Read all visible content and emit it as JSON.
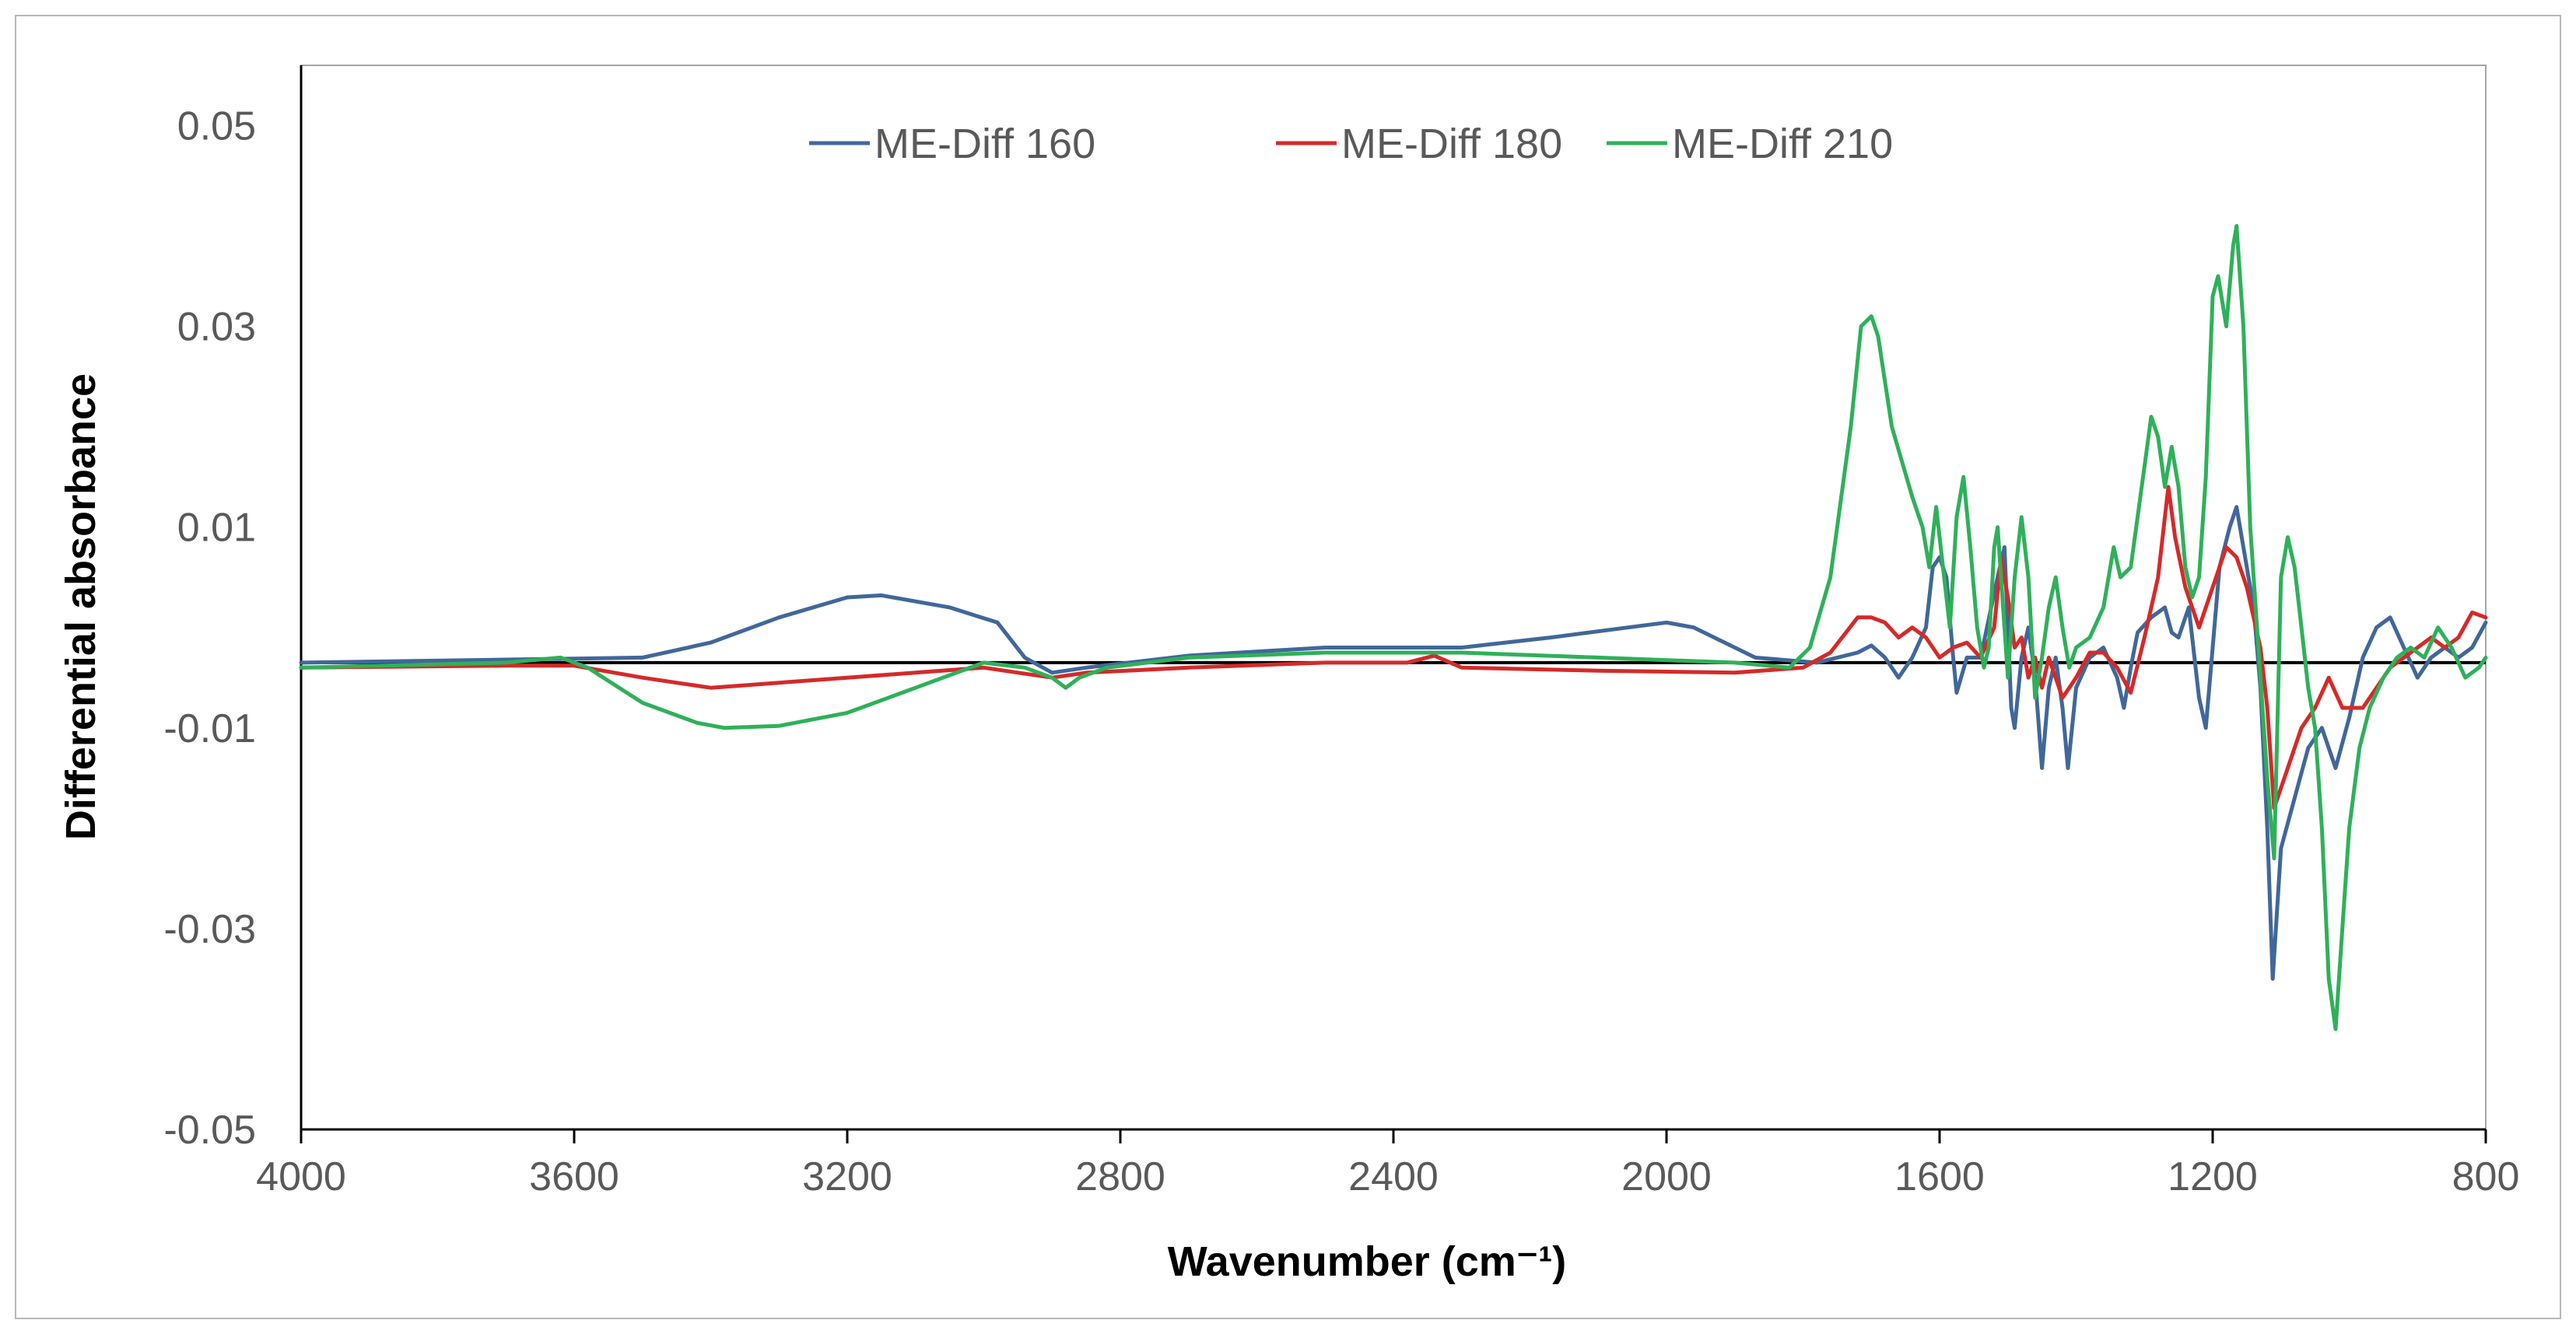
{
  "chart_data": {
    "type": "line",
    "title": "",
    "xlabel": "Wavenumber (cm⁻¹)",
    "ylabel": "Differential absorbance",
    "xlim": [
      4000,
      800
    ],
    "ylim": [
      -0.05,
      0.056
    ],
    "x_reversed": true,
    "x_ticks": [
      4000,
      3600,
      3200,
      2800,
      2400,
      2000,
      1600,
      1200,
      800
    ],
    "y_ticks": [
      -0.05,
      -0.03,
      -0.01,
      0.01,
      0.03,
      0.05
    ],
    "x_tick_labels": [
      "4000",
      "3600",
      "3200",
      "2800",
      "2400",
      "2000",
      "1600",
      "1200",
      "800"
    ],
    "y_tick_labels": [
      "-0.05",
      "-0.03",
      "-0.01",
      "0.01",
      "0.03",
      "0.05"
    ],
    "baseline": -0.0035,
    "grid": false,
    "legend_position": "top-center",
    "series": [
      {
        "name": "ME-Diff 160",
        "color": "#41679a",
        "points": [
          [
            4000,
            -0.0035
          ],
          [
            3700,
            -0.0032
          ],
          [
            3500,
            -0.003
          ],
          [
            3400,
            -0.0015
          ],
          [
            3300,
            0.001
          ],
          [
            3200,
            0.003
          ],
          [
            3150,
            0.0032
          ],
          [
            3050,
            0.002
          ],
          [
            2980,
            0.0005
          ],
          [
            2940,
            -0.003
          ],
          [
            2900,
            -0.0045
          ],
          [
            2850,
            -0.004
          ],
          [
            2700,
            -0.0028
          ],
          [
            2500,
            -0.002
          ],
          [
            2300,
            -0.002
          ],
          [
            2170,
            -0.001
          ],
          [
            2000,
            0.0005
          ],
          [
            1960,
            0.0
          ],
          [
            1870,
            -0.003
          ],
          [
            1780,
            -0.0035
          ],
          [
            1720,
            -0.0025
          ],
          [
            1700,
            -0.0018
          ],
          [
            1680,
            -0.003
          ],
          [
            1660,
            -0.005
          ],
          [
            1640,
            -0.003
          ],
          [
            1620,
            0.0
          ],
          [
            1610,
            0.006
          ],
          [
            1600,
            0.007
          ],
          [
            1590,
            0.005
          ],
          [
            1580,
            -0.003
          ],
          [
            1575,
            -0.0065
          ],
          [
            1560,
            -0.003
          ],
          [
            1540,
            -0.003
          ],
          [
            1515,
            0.005
          ],
          [
            1505,
            0.008
          ],
          [
            1495,
            -0.008
          ],
          [
            1490,
            -0.01
          ],
          [
            1480,
            -0.003
          ],
          [
            1470,
            0.0
          ],
          [
            1460,
            -0.005
          ],
          [
            1450,
            -0.014
          ],
          [
            1440,
            -0.006
          ],
          [
            1430,
            -0.003
          ],
          [
            1420,
            -0.008
          ],
          [
            1412,
            -0.014
          ],
          [
            1400,
            -0.006
          ],
          [
            1380,
            -0.003
          ],
          [
            1360,
            -0.002
          ],
          [
            1340,
            -0.005
          ],
          [
            1330,
            -0.008
          ],
          [
            1320,
            -0.004
          ],
          [
            1310,
            -0.0005
          ],
          [
            1290,
            0.001
          ],
          [
            1270,
            0.002
          ],
          [
            1260,
            -0.0005
          ],
          [
            1250,
            -0.001
          ],
          [
            1240,
            0.001
          ],
          [
            1235,
            0.002
          ],
          [
            1220,
            -0.007
          ],
          [
            1210,
            -0.01
          ],
          [
            1200,
            -0.002
          ],
          [
            1190,
            0.006
          ],
          [
            1175,
            0.01
          ],
          [
            1165,
            0.012
          ],
          [
            1155,
            0.008
          ],
          [
            1140,
            0.002
          ],
          [
            1130,
            -0.006
          ],
          [
            1120,
            -0.02
          ],
          [
            1112,
            -0.035
          ],
          [
            1100,
            -0.022
          ],
          [
            1080,
            -0.017
          ],
          [
            1060,
            -0.012
          ],
          [
            1040,
            -0.01
          ],
          [
            1020,
            -0.014
          ],
          [
            1000,
            -0.009
          ],
          [
            980,
            -0.003
          ],
          [
            960,
            0.0
          ],
          [
            940,
            0.001
          ],
          [
            920,
            -0.002
          ],
          [
            900,
            -0.005
          ],
          [
            880,
            -0.003
          ],
          [
            860,
            -0.002
          ],
          [
            840,
            -0.003
          ],
          [
            820,
            -0.002
          ],
          [
            800,
            0.0005
          ]
        ]
      },
      {
        "name": "ME-Diff 180",
        "color": "#d42a2a",
        "points": [
          [
            4000,
            -0.004
          ],
          [
            3700,
            -0.0038
          ],
          [
            3600,
            -0.0038
          ],
          [
            3500,
            -0.005
          ],
          [
            3400,
            -0.006
          ],
          [
            3300,
            -0.0055
          ],
          [
            3200,
            -0.005
          ],
          [
            3100,
            -0.0045
          ],
          [
            3000,
            -0.004
          ],
          [
            2950,
            -0.0045
          ],
          [
            2900,
            -0.005
          ],
          [
            2850,
            -0.0045
          ],
          [
            2700,
            -0.004
          ],
          [
            2500,
            -0.0035
          ],
          [
            2380,
            -0.0035
          ],
          [
            2340,
            -0.0028
          ],
          [
            2300,
            -0.004
          ],
          [
            2100,
            -0.0043
          ],
          [
            1900,
            -0.0045
          ],
          [
            1800,
            -0.004
          ],
          [
            1760,
            -0.0025
          ],
          [
            1720,
            0.001
          ],
          [
            1700,
            0.001
          ],
          [
            1680,
            0.0005
          ],
          [
            1660,
            -0.001
          ],
          [
            1640,
            0.0
          ],
          [
            1620,
            -0.001
          ],
          [
            1600,
            -0.003
          ],
          [
            1580,
            -0.002
          ],
          [
            1560,
            -0.0015
          ],
          [
            1540,
            -0.003
          ],
          [
            1520,
            0.0
          ],
          [
            1510,
            0.007
          ],
          [
            1500,
            0.003
          ],
          [
            1490,
            -0.002
          ],
          [
            1480,
            -0.001
          ],
          [
            1470,
            -0.005
          ],
          [
            1460,
            -0.003
          ],
          [
            1450,
            -0.006
          ],
          [
            1440,
            -0.003
          ],
          [
            1420,
            -0.007
          ],
          [
            1400,
            -0.005
          ],
          [
            1380,
            -0.0025
          ],
          [
            1360,
            -0.0025
          ],
          [
            1340,
            -0.004
          ],
          [
            1320,
            -0.0065
          ],
          [
            1300,
            -0.001
          ],
          [
            1280,
            0.005
          ],
          [
            1265,
            0.014
          ],
          [
            1255,
            0.009
          ],
          [
            1240,
            0.004
          ],
          [
            1220,
            0.0
          ],
          [
            1200,
            0.004
          ],
          [
            1180,
            0.008
          ],
          [
            1165,
            0.007
          ],
          [
            1150,
            0.004
          ],
          [
            1130,
            -0.002
          ],
          [
            1120,
            -0.008
          ],
          [
            1110,
            -0.018
          ],
          [
            1090,
            -0.014
          ],
          [
            1070,
            -0.01
          ],
          [
            1050,
            -0.008
          ],
          [
            1030,
            -0.005
          ],
          [
            1010,
            -0.008
          ],
          [
            980,
            -0.008
          ],
          [
            960,
            -0.006
          ],
          [
            940,
            -0.004
          ],
          [
            920,
            -0.003
          ],
          [
            900,
            -0.002
          ],
          [
            880,
            -0.001
          ],
          [
            860,
            -0.002
          ],
          [
            840,
            -0.001
          ],
          [
            820,
            0.0015
          ],
          [
            800,
            0.001
          ]
        ]
      },
      {
        "name": "ME-Diff 210",
        "color": "#2fb05a",
        "points": [
          [
            4000,
            -0.004
          ],
          [
            3700,
            -0.0035
          ],
          [
            3620,
            -0.003
          ],
          [
            3580,
            -0.004
          ],
          [
            3500,
            -0.0075
          ],
          [
            3420,
            -0.0095
          ],
          [
            3380,
            -0.01
          ],
          [
            3300,
            -0.0098
          ],
          [
            3200,
            -0.0085
          ],
          [
            3100,
            -0.006
          ],
          [
            3000,
            -0.0035
          ],
          [
            2940,
            -0.004
          ],
          [
            2900,
            -0.005
          ],
          [
            2880,
            -0.006
          ],
          [
            2860,
            -0.005
          ],
          [
            2820,
            -0.004
          ],
          [
            2700,
            -0.003
          ],
          [
            2500,
            -0.0025
          ],
          [
            2300,
            -0.0025
          ],
          [
            2100,
            -0.003
          ],
          [
            1900,
            -0.0035
          ],
          [
            1820,
            -0.004
          ],
          [
            1790,
            -0.002
          ],
          [
            1760,
            0.005
          ],
          [
            1730,
            0.02
          ],
          [
            1715,
            0.03
          ],
          [
            1700,
            0.031
          ],
          [
            1690,
            0.029
          ],
          [
            1670,
            0.02
          ],
          [
            1640,
            0.013
          ],
          [
            1625,
            0.01
          ],
          [
            1615,
            0.006
          ],
          [
            1605,
            0.012
          ],
          [
            1595,
            0.006
          ],
          [
            1585,
            0.0
          ],
          [
            1575,
            0.011
          ],
          [
            1565,
            0.015
          ],
          [
            1555,
            0.008
          ],
          [
            1545,
            0.0
          ],
          [
            1535,
            -0.004
          ],
          [
            1528,
            -0.002
          ],
          [
            1520,
            0.008
          ],
          [
            1515,
            0.01
          ],
          [
            1505,
            0.0
          ],
          [
            1500,
            -0.005
          ],
          [
            1490,
            0.005
          ],
          [
            1480,
            0.011
          ],
          [
            1470,
            0.005
          ],
          [
            1460,
            -0.007
          ],
          [
            1450,
            -0.003
          ],
          [
            1440,
            0.002
          ],
          [
            1430,
            0.005
          ],
          [
            1420,
            0.0
          ],
          [
            1410,
            -0.004
          ],
          [
            1400,
            -0.002
          ],
          [
            1380,
            -0.001
          ],
          [
            1360,
            0.002
          ],
          [
            1345,
            0.008
          ],
          [
            1335,
            0.005
          ],
          [
            1320,
            0.006
          ],
          [
            1300,
            0.016
          ],
          [
            1290,
            0.021
          ],
          [
            1280,
            0.019
          ],
          [
            1270,
            0.014
          ],
          [
            1260,
            0.018
          ],
          [
            1250,
            0.014
          ],
          [
            1240,
            0.006
          ],
          [
            1230,
            0.003
          ],
          [
            1220,
            0.005
          ],
          [
            1210,
            0.015
          ],
          [
            1200,
            0.033
          ],
          [
            1192,
            0.035
          ],
          [
            1180,
            0.03
          ],
          [
            1170,
            0.038
          ],
          [
            1165,
            0.04
          ],
          [
            1155,
            0.03
          ],
          [
            1145,
            0.01
          ],
          [
            1130,
            -0.005
          ],
          [
            1120,
            -0.015
          ],
          [
            1110,
            -0.023
          ],
          [
            1100,
            0.005
          ],
          [
            1090,
            0.009
          ],
          [
            1080,
            0.006
          ],
          [
            1070,
            0.0
          ],
          [
            1060,
            -0.006
          ],
          [
            1050,
            -0.01
          ],
          [
            1040,
            -0.02
          ],
          [
            1030,
            -0.035
          ],
          [
            1020,
            -0.04
          ],
          [
            1010,
            -0.03
          ],
          [
            1000,
            -0.02
          ],
          [
            985,
            -0.012
          ],
          [
            970,
            -0.008
          ],
          [
            950,
            -0.005
          ],
          [
            930,
            -0.003
          ],
          [
            910,
            -0.002
          ],
          [
            890,
            -0.003
          ],
          [
            870,
            0.0
          ],
          [
            850,
            -0.002
          ],
          [
            830,
            -0.005
          ],
          [
            810,
            -0.004
          ],
          [
            800,
            -0.003
          ]
        ]
      }
    ]
  }
}
